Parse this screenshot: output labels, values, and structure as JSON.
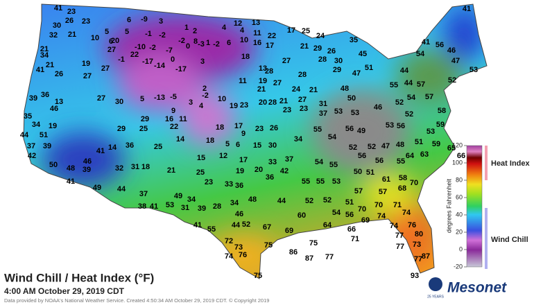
{
  "header": {
    "title": "Wind Chill / Heat Index (°F)",
    "subtitle": "4:00 AM October 29, 2019 CDT",
    "credit": "Data provided by NOAA's National Weather Service. Created 4:50:34 AM October 29, 2019 CDT. © Copyright 2019"
  },
  "legend": {
    "ticks": [
      -20,
      0,
      20,
      40,
      60,
      80,
      100,
      120
    ],
    "axis_label": "degrees Fahrenheit",
    "heat_label": "Heat Index",
    "chill_label": "Wind Chill"
  },
  "logo": {
    "name": "Mesonet",
    "badge": "25 YEARS"
  },
  "stations": [
    41,
    23,
    26,
    23,
    30,
    32,
    21,
    34,
    10,
    5,
    6,
    6,
    -9,
    3,
    5,
    20,
    -1,
    -2,
    1,
    2,
    4,
    4,
    12,
    13,
    -2,
    8,
    1,
    -2,
    6,
    10,
    -10,
    -2,
    -7,
    0,
    -3,
    11,
    22,
    17,
    25,
    24,
    35,
    45,
    41,
    41,
    56,
    54,
    46,
    47,
    53,
    21,
    27,
    22,
    19,
    27,
    21,
    -1,
    -17,
    -14,
    0,
    -17,
    3,
    16,
    17,
    18,
    21,
    29,
    26,
    30,
    28,
    27,
    13,
    19,
    21,
    24,
    21,
    48,
    26,
    27,
    41,
    29,
    47,
    51,
    44,
    44,
    55,
    57,
    52,
    39,
    36,
    13,
    27,
    30,
    5,
    -13,
    -5,
    2,
    -2,
    11,
    28,
    28,
    27,
    10,
    3,
    4,
    19,
    23,
    20,
    28,
    21,
    27,
    31,
    46,
    35,
    19,
    34,
    9,
    16,
    11,
    22,
    18,
    17,
    9,
    23,
    26,
    23,
    23,
    37,
    53,
    53,
    50,
    46,
    52,
    54,
    57,
    58,
    44,
    51,
    29,
    25,
    29,
    55,
    54,
    56,
    49,
    53,
    56,
    52,
    53,
    59,
    37,
    39,
    14,
    36,
    25,
    14,
    18,
    5,
    6,
    15,
    30,
    34,
    52,
    52,
    47,
    48,
    51,
    59,
    65,
    41,
    42,
    50,
    46,
    39,
    48,
    32,
    31,
    18,
    21,
    25,
    15,
    12,
    17,
    19,
    20,
    33,
    37,
    54,
    55,
    56,
    56,
    55,
    64,
    63,
    66,
    41,
    49,
    44,
    23,
    33,
    36,
    42,
    36,
    55,
    55,
    53,
    50,
    51,
    61,
    58,
    70,
    38,
    37,
    41,
    53,
    31,
    49,
    34,
    28,
    39,
    34,
    48,
    52,
    51,
    57,
    57,
    68,
    44,
    52,
    46,
    54,
    56,
    60,
    64,
    66,
    69,
    70,
    74,
    70,
    71,
    74,
    41,
    55,
    44,
    52,
    67,
    69,
    71,
    72,
    73,
    75,
    75,
    74,
    76,
    80,
    77,
    74,
    76,
    86,
    87,
    77,
    77,
    73,
    77,
    87,
    75,
    93
  ]
}
